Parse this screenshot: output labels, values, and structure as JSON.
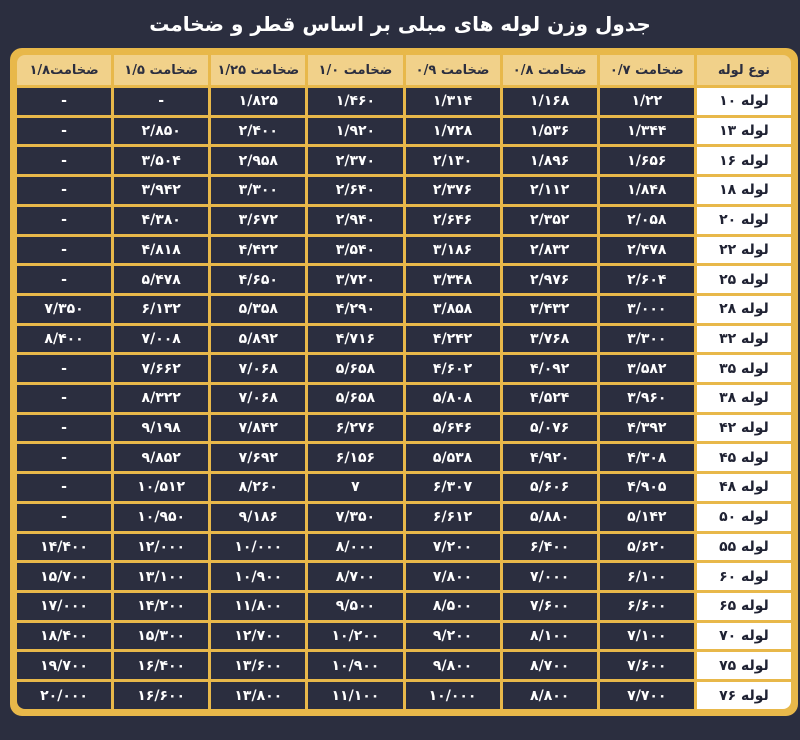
{
  "title": "جدول وزن لوله های مبلی بر اساس قطر و ضخامت",
  "colors": {
    "background": "#2b2e3f",
    "border": "#e8b84a",
    "header": "#f1d18a",
    "rowHead": "#ffffff"
  },
  "table": {
    "headers": [
      "نوع لوله",
      "ضخامت ۰/۷",
      "ضخامت ۰/۸",
      "ضخامت ۰/۹",
      "ضخامت ۱/۰",
      "ضخامت ۱/۲۵",
      "ضخامت ۱/۵",
      "ضخامت۱/۸"
    ],
    "rows": [
      [
        "لوله ۱۰",
        "۱/۲۲",
        "۱/۱۶۸",
        "۱/۳۱۴",
        "۱/۴۶۰",
        "۱/۸۲۵",
        "-",
        "-"
      ],
      [
        "لوله ۱۳",
        "۱/۳۴۴",
        "۱/۵۳۶",
        "۱/۷۲۸",
        "۱/۹۲۰",
        "۲/۴۰۰",
        "۲/۸۵۰",
        "-"
      ],
      [
        "لوله ۱۶",
        "۱/۶۵۶",
        "۱/۸۹۶",
        "۲/۱۳۰",
        "۲/۳۷۰",
        "۲/۹۵۸",
        "۳/۵۰۴",
        "-"
      ],
      [
        "لوله ۱۸",
        "۱/۸۴۸",
        "۲/۱۱۲",
        "۲/۳۷۶",
        "۲/۶۴۰",
        "۳/۳۰۰",
        "۳/۹۴۲",
        "-"
      ],
      [
        "لوله ۲۰",
        "۲/۰۵۸",
        "۲/۳۵۲",
        "۲/۶۴۶",
        "۲/۹۴۰",
        "۳/۶۷۲",
        "۴/۳۸۰",
        "-"
      ],
      [
        "لوله ۲۲",
        "۲/۴۷۸",
        "۲/۸۳۲",
        "۳/۱۸۶",
        "۳/۵۴۰",
        "۴/۴۲۲",
        "۴/۸۱۸",
        "-"
      ],
      [
        "لوله ۲۵",
        "۲/۶۰۴",
        "۲/۹۷۶",
        "۳/۳۴۸",
        "۳/۷۲۰",
        "۴/۶۵۰",
        "۵/۴۷۸",
        "-"
      ],
      [
        "لوله ۲۸",
        "۳/۰۰۰",
        "۳/۴۳۲",
        "۳/۸۵۸",
        "۴/۲۹۰",
        "۵/۳۵۸",
        "۶/۱۳۲",
        "۷/۳۵۰"
      ],
      [
        "لوله ۳۲",
        "۳/۳۰۰",
        "۳/۷۶۸",
        "۴/۲۴۲",
        "۴/۷۱۶",
        "۵/۸۹۲",
        "۷/۰۰۸",
        "۸/۴۰۰"
      ],
      [
        "لوله ۳۵",
        "۳/۵۸۲",
        "۴/۰۹۲",
        "۴/۶۰۲",
        "۵/۶۵۸",
        "۷/۰۶۸",
        "۷/۶۶۲",
        "-"
      ],
      [
        "لوله ۳۸",
        "۳/۹۶۰",
        "۴/۵۲۴",
        "۵/۸۰۸",
        "۵/۶۵۸",
        "۷/۰۶۸",
        "۸/۳۲۲",
        "-"
      ],
      [
        "لوله ۴۲",
        "۴/۳۹۲",
        "۵/۰۷۶",
        "۵/۶۴۶",
        "۶/۲۷۶",
        "۷/۸۴۲",
        "۹/۱۹۸",
        "-"
      ],
      [
        "لوله ۴۵",
        "۴/۳۰۸",
        "۴/۹۲۰",
        "۵/۵۳۸",
        "۶/۱۵۶",
        "۷/۶۹۲",
        "۹/۸۵۲",
        "-"
      ],
      [
        "لوله ۴۸",
        "۴/۹۰۵",
        "۵/۶۰۶",
        "۶/۳۰۷",
        "۷",
        "۸/۲۶۰",
        "۱۰/۵۱۲",
        "-"
      ],
      [
        "لوله ۵۰",
        "۵/۱۴۲",
        "۵/۸۸۰",
        "۶/۶۱۲",
        "۷/۳۵۰",
        "۹/۱۸۶",
        "۱۰/۹۵۰",
        "-"
      ],
      [
        "لوله ۵۵",
        "۵/۶۲۰",
        "۶/۴۰۰",
        "۷/۲۰۰",
        "۸/۰۰۰",
        "۱۰/۰۰۰",
        "۱۲/۰۰۰",
        "۱۴/۴۰۰"
      ],
      [
        "لوله ۶۰",
        "۶/۱۰۰",
        "۷/۰۰۰",
        "۷/۸۰۰",
        "۸/۷۰۰",
        "۱۰/۹۰۰",
        "۱۳/۱۰۰",
        "۱۵/۷۰۰"
      ],
      [
        "لوله ۶۵",
        "۶/۶۰۰",
        "۷/۶۰۰",
        "۸/۵۰۰",
        "۹/۵۰۰",
        "۱۱/۸۰۰",
        "۱۴/۲۰۰",
        "۱۷/۰۰۰"
      ],
      [
        "لوله ۷۰",
        "۷/۱۰۰",
        "۸/۱۰۰",
        "۹/۲۰۰",
        "۱۰/۲۰۰",
        "۱۲/۷۰۰",
        "۱۵/۳۰۰",
        "۱۸/۴۰۰"
      ],
      [
        "لوله ۷۵",
        "۷/۶۰۰",
        "۸/۷۰۰",
        "۹/۸۰۰",
        "۱۰/۹۰۰",
        "۱۳/۶۰۰",
        "۱۶/۴۰۰",
        "۱۹/۷۰۰"
      ],
      [
        "لوله ۷۶",
        "۷/۷۰۰",
        "۸/۸۰۰",
        "۱۰/۰۰۰",
        "۱۱/۱۰۰",
        "۱۳/۸۰۰",
        "۱۶/۶۰۰",
        "۲۰/۰۰۰"
      ]
    ]
  }
}
